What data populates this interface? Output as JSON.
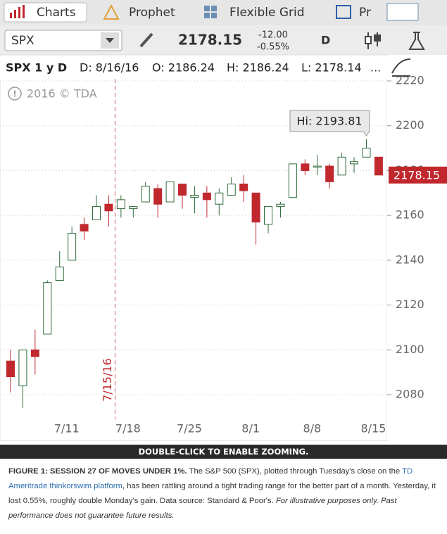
{
  "tabs": [
    "Charts",
    "Prophet",
    "Flexible Grid",
    "Pr"
  ],
  "toolbar": {
    "symbol": "SPX",
    "price": "2178.15",
    "change": "-12.00",
    "change_pct": "-0.55%",
    "period": "D"
  },
  "chart_header": {
    "title": "SPX 1 y D",
    "date": "D: 8/16/16",
    "open": "O: 2186.24",
    "high": "H: 2186.24",
    "low": "L: 2178.14",
    "more": "..."
  },
  "chart_data": {
    "type": "candlestick",
    "watermark": "2016 © TDA",
    "categories": [
      null,
      null,
      null,
      null,
      "7/11",
      null,
      null,
      null,
      null,
      "7/18",
      null,
      null,
      null,
      null,
      "7/25",
      null,
      null,
      null,
      null,
      "8/1",
      null,
      null,
      null,
      null,
      "8/8",
      null,
      null,
      null,
      null,
      "8/15",
      null
    ],
    "open": [
      2095,
      2084,
      2100,
      2107,
      2131,
      2140,
      2156,
      2158,
      2165,
      2163,
      2163,
      2166,
      2172,
      2166,
      2174,
      2168,
      2170,
      2165,
      2169,
      2174,
      2170,
      2156,
      2164,
      2168,
      2183,
      2182,
      2182,
      2178,
      2183,
      2186,
      2186
    ],
    "high": [
      2100,
      2100,
      2109,
      2131,
      2144,
      2155,
      2159,
      2169,
      2169,
      2169,
      2164,
      2175,
      2174,
      2175,
      2174,
      2173,
      2173,
      2172,
      2177,
      2178,
      2170,
      2163,
      2166,
      2183,
      2185,
      2187,
      2183,
      2188,
      2186,
      2194,
      2186
    ],
    "low": [
      2081,
      2074,
      2089,
      2107,
      2131,
      2140,
      2149,
      2158,
      2155,
      2159,
      2159,
      2166,
      2159,
      2166,
      2163,
      2161,
      2159,
      2160,
      2169,
      2166,
      2147,
      2152,
      2159,
      2168,
      2178,
      2178,
      2172,
      2178,
      2179,
      2186,
      2178
    ],
    "close": [
      2088,
      2100,
      2097,
      2130,
      2137,
      2152,
      2153,
      2164,
      2162,
      2167,
      2164,
      2173,
      2165,
      2175,
      2169,
      2169,
      2167,
      2170,
      2174,
      2171,
      2157,
      2164,
      2165,
      2183,
      2180,
      2182,
      2175,
      2186,
      2184,
      2190,
      2178
    ],
    "up_color": "#2e6b3a",
    "down_color": "#c0282e",
    "ylim": [
      2069,
      2231
    ],
    "yticks": [
      2080,
      2100,
      2120,
      2140,
      2160,
      2180,
      2200,
      2220
    ],
    "grid": true,
    "high_annotation": "Hi: 2193.81",
    "last_price_label": "2178.15",
    "event_line": "7/15/16"
  },
  "zoom_bar": "DOUBLE-CLICK TO ENABLE ZOOMING.",
  "caption": {
    "bold": "FIGURE 1: SESSION 27 OF MOVES UNDER 1%.",
    "text1": " The S&P 500 (SPX), plotted through Tuesday's close on the ",
    "link": "TD Ameritrade thinkorswim platform",
    "text2": ", has been rattling around a tight trading range for the better part of a month. Yesterday, it lost 0.55%, roughly double Monday's gain. Data source: Standard & Poor's. ",
    "italic": "For illustrative purposes only. Past performance does not guarantee future results."
  }
}
